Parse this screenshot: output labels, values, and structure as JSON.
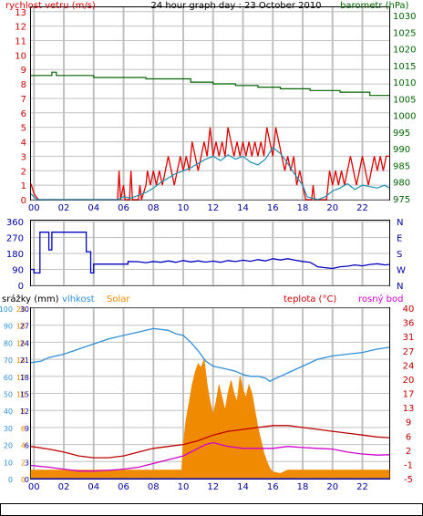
{
  "title": "24 hour graph day : 23 October 2010",
  "colors": {
    "wind": "#e00000",
    "wind_avg": "#1e8fb0",
    "pressure": "#006400",
    "direction": "#0000c0",
    "humidity": "#2f8fd8",
    "temperature": "#c00000",
    "dewpoint": "#d000d0",
    "solar": "#f08a00",
    "rain": "#0000ff",
    "grid": "#c0c0c0",
    "left_axis": "#d00000",
    "right_axis_green": "#006400",
    "axis_blue": "#0000a0",
    "humidity_axis": "#2f8fd8"
  },
  "x_tick_labels": [
    "00",
    "02",
    "04",
    "06",
    "08",
    "10",
    "12",
    "14",
    "16",
    "18",
    "20",
    "22"
  ],
  "chart_data": [
    {
      "type": "line",
      "name": "wind-pressure",
      "title": "24 hour graph day : 23 October 2010",
      "left_axis_label": "rychlost vetru (m/s)",
      "right_axis_label": "barometr (hPa)",
      "left_ticks": [
        "0",
        "1",
        "2",
        "3",
        "4",
        "5",
        "6",
        "7",
        "8",
        "9",
        "10",
        "11",
        "12",
        "13"
      ],
      "right_ticks": [
        "975",
        "980",
        "985",
        "990",
        "995",
        "1000",
        "1005",
        "1010",
        "1015",
        "1020",
        "1025",
        "1030"
      ],
      "ylim_left": [
        0,
        13.3
      ],
      "ylim_right": [
        974.7,
        1032.5
      ],
      "x_range": [
        -0.2,
        23.8
      ],
      "wind_gust": [
        [
          -0.2,
          1.1
        ],
        [
          0,
          0.4
        ],
        [
          0.3,
          0
        ],
        [
          5.6,
          0
        ],
        [
          5.7,
          2
        ],
        [
          5.8,
          0
        ],
        [
          6.0,
          1
        ],
        [
          6.1,
          0
        ],
        [
          6.4,
          0
        ],
        [
          6.5,
          2
        ],
        [
          6.6,
          0
        ],
        [
          7,
          0
        ],
        [
          7.1,
          1
        ],
        [
          7.2,
          0
        ],
        [
          7.5,
          1
        ],
        [
          7.6,
          2
        ],
        [
          7.8,
          1
        ],
        [
          8,
          2
        ],
        [
          8.2,
          1
        ],
        [
          8.4,
          2
        ],
        [
          8.6,
          1
        ],
        [
          8.8,
          2
        ],
        [
          9,
          3
        ],
        [
          9.2,
          2
        ],
        [
          9.4,
          1
        ],
        [
          9.6,
          2
        ],
        [
          9.8,
          3
        ],
        [
          10,
          2
        ],
        [
          10.2,
          3
        ],
        [
          10.4,
          2
        ],
        [
          10.6,
          4
        ],
        [
          10.8,
          3
        ],
        [
          11,
          2
        ],
        [
          11.2,
          3
        ],
        [
          11.4,
          4
        ],
        [
          11.6,
          3
        ],
        [
          11.8,
          5
        ],
        [
          12,
          3
        ],
        [
          12.2,
          4
        ],
        [
          12.4,
          3
        ],
        [
          12.6,
          4
        ],
        [
          12.8,
          3
        ],
        [
          13,
          5
        ],
        [
          13.2,
          4
        ],
        [
          13.4,
          3
        ],
        [
          13.6,
          4
        ],
        [
          13.8,
          3
        ],
        [
          14,
          4
        ],
        [
          14.2,
          3
        ],
        [
          14.4,
          4
        ],
        [
          14.6,
          3
        ],
        [
          14.8,
          4
        ],
        [
          15,
          3
        ],
        [
          15.2,
          4
        ],
        [
          15.4,
          3
        ],
        [
          15.6,
          5
        ],
        [
          15.8,
          4
        ],
        [
          16,
          3
        ],
        [
          16.2,
          5
        ],
        [
          16.4,
          4
        ],
        [
          16.6,
          3
        ],
        [
          16.8,
          2
        ],
        [
          17,
          3
        ],
        [
          17.2,
          2
        ],
        [
          17.4,
          3
        ],
        [
          17.6,
          1
        ],
        [
          17.8,
          2
        ],
        [
          18,
          1
        ],
        [
          18.2,
          0
        ],
        [
          18.6,
          0
        ],
        [
          18.7,
          1
        ],
        [
          18.8,
          0
        ],
        [
          19.6,
          0
        ],
        [
          19.7,
          1
        ],
        [
          19.8,
          2
        ],
        [
          20,
          1
        ],
        [
          20.2,
          2
        ],
        [
          20.4,
          1
        ],
        [
          20.6,
          2
        ],
        [
          20.8,
          1
        ],
        [
          21,
          2
        ],
        [
          21.2,
          3
        ],
        [
          21.4,
          2
        ],
        [
          21.6,
          1
        ],
        [
          21.8,
          2
        ],
        [
          22,
          3
        ],
        [
          22.2,
          2
        ],
        [
          22.4,
          1
        ],
        [
          22.6,
          2
        ],
        [
          22.8,
          3
        ],
        [
          23,
          2
        ],
        [
          23.2,
          3
        ],
        [
          23.4,
          2
        ],
        [
          23.6,
          3
        ],
        [
          23.8,
          3
        ]
      ],
      "wind_avg": [
        [
          -0.2,
          0.4
        ],
        [
          0.2,
          0
        ],
        [
          5.6,
          0
        ],
        [
          6,
          0.2
        ],
        [
          6.5,
          0.1
        ],
        [
          7,
          0.3
        ],
        [
          7.5,
          0.5
        ],
        [
          8,
          0.8
        ],
        [
          8.5,
          1.2
        ],
        [
          9,
          1.5
        ],
        [
          9.5,
          1.8
        ],
        [
          10,
          2.0
        ],
        [
          10.5,
          2.2
        ],
        [
          11,
          2.5
        ],
        [
          11.5,
          2.8
        ],
        [
          12,
          3.0
        ],
        [
          12.5,
          2.7
        ],
        [
          13,
          3.1
        ],
        [
          13.5,
          2.8
        ],
        [
          14,
          3.0
        ],
        [
          14.5,
          2.6
        ],
        [
          15,
          2.4
        ],
        [
          15.5,
          2.8
        ],
        [
          16,
          3.6
        ],
        [
          16.5,
          3.2
        ],
        [
          17,
          2.5
        ],
        [
          17.5,
          1.7
        ],
        [
          18,
          1.0
        ],
        [
          18.3,
          0.2
        ],
        [
          19,
          0
        ],
        [
          19.5,
          0.2
        ],
        [
          20,
          0.6
        ],
        [
          20.5,
          0.8
        ],
        [
          21,
          1.1
        ],
        [
          21.5,
          0.7
        ],
        [
          22,
          1.0
        ],
        [
          22.5,
          0.9
        ],
        [
          23,
          0.8
        ],
        [
          23.5,
          1.0
        ],
        [
          23.8,
          0.8
        ]
      ],
      "pressure": [
        [
          -0.2,
          1012
        ],
        [
          1.2,
          1012
        ],
        [
          1.2,
          1013
        ],
        [
          1.5,
          1013
        ],
        [
          1.5,
          1012
        ],
        [
          4,
          1012
        ],
        [
          4,
          1011.4
        ],
        [
          7.5,
          1011.4
        ],
        [
          7.5,
          1011
        ],
        [
          10.5,
          1011
        ],
        [
          10.5,
          1010
        ],
        [
          12,
          1010
        ],
        [
          12,
          1009.5
        ],
        [
          13.5,
          1009.5
        ],
        [
          13.5,
          1009
        ],
        [
          15,
          1009
        ],
        [
          15,
          1008.5
        ],
        [
          16.5,
          1008.5
        ],
        [
          16.5,
          1008
        ],
        [
          18.5,
          1008
        ],
        [
          18.5,
          1007.5
        ],
        [
          20.5,
          1007.5
        ],
        [
          20.5,
          1007
        ],
        [
          22.5,
          1007
        ],
        [
          22.5,
          1006
        ],
        [
          23.8,
          1006
        ]
      ]
    },
    {
      "type": "line",
      "name": "wind-direction",
      "left_ticks": [
        "0",
        "90",
        "180",
        "270",
        "360"
      ],
      "right_ticks": [
        "N",
        "W",
        "S",
        "E",
        "N"
      ],
      "ylim": [
        0,
        360
      ],
      "x_range": [
        -0.2,
        23.8
      ],
      "direction": [
        [
          -0.2,
          90
        ],
        [
          0,
          90
        ],
        [
          0,
          70
        ],
        [
          0.4,
          70
        ],
        [
          0.4,
          300
        ],
        [
          1,
          300
        ],
        [
          1,
          200
        ],
        [
          1.2,
          200
        ],
        [
          1.2,
          300
        ],
        [
          3.5,
          300
        ],
        [
          3.5,
          190
        ],
        [
          3.8,
          190
        ],
        [
          3.8,
          70
        ],
        [
          4,
          70
        ],
        [
          4,
          120
        ],
        [
          6.3,
          120
        ],
        [
          6.3,
          135
        ],
        [
          7,
          133
        ],
        [
          7.5,
          128
        ],
        [
          8,
          135
        ],
        [
          8.5,
          130
        ],
        [
          9,
          138
        ],
        [
          9.5,
          130
        ],
        [
          10,
          140
        ],
        [
          10.5,
          132
        ],
        [
          11,
          138
        ],
        [
          11.5,
          131
        ],
        [
          12,
          137
        ],
        [
          12.5,
          130
        ],
        [
          13,
          140
        ],
        [
          13.5,
          134
        ],
        [
          14,
          142
        ],
        [
          14.5,
          136
        ],
        [
          15,
          145
        ],
        [
          15.5,
          138
        ],
        [
          16,
          150
        ],
        [
          16.5,
          143
        ],
        [
          17,
          150
        ],
        [
          17.5,
          142
        ],
        [
          18,
          135
        ],
        [
          18.5,
          130
        ],
        [
          19,
          105
        ],
        [
          19.5,
          100
        ],
        [
          20,
          95
        ],
        [
          20.5,
          105
        ],
        [
          21,
          108
        ],
        [
          21.5,
          115
        ],
        [
          22,
          110
        ],
        [
          22.5,
          118
        ],
        [
          23,
          122
        ],
        [
          23.5,
          115
        ],
        [
          23.8,
          118
        ]
      ]
    },
    {
      "type": "line",
      "name": "humidity-temperature-solar-rain",
      "left_axis_labels": [
        "srážky (mm)",
        "vlhkost",
        "Solar"
      ],
      "right_axis_labels": [
        "teplota (°C)",
        "rosný bod"
      ],
      "rain_ticks": [
        "0",
        "3",
        "6",
        "9",
        "12",
        "15",
        "18",
        "21",
        "24",
        "27",
        "30"
      ],
      "humidity_ticks": [
        "0",
        "10",
        "20",
        "30",
        "40",
        "50",
        "60",
        "70",
        "80",
        "90",
        "100"
      ],
      "solar_ticks": [
        "0",
        "2",
        "4",
        "6",
        "8",
        "10",
        "12",
        "14",
        "16",
        "18",
        "20"
      ],
      "temperature_ticks": [
        "-5",
        "-1",
        "2",
        "6",
        "9",
        "13",
        "17",
        "20",
        "24",
        "27",
        "31",
        "36",
        "40"
      ],
      "ylim_humidity": [
        0,
        100
      ],
      "ylim_temperature": [
        -5,
        40
      ],
      "x_range": [
        -0.2,
        23.8
      ],
      "humidity": [
        [
          -0.2,
          68
        ],
        [
          0.5,
          69
        ],
        [
          1,
          71
        ],
        [
          2,
          73
        ],
        [
          3,
          76
        ],
        [
          4,
          79
        ],
        [
          5,
          82
        ],
        [
          6,
          84
        ],
        [
          7,
          86
        ],
        [
          7.5,
          87
        ],
        [
          8,
          88
        ],
        [
          9,
          87
        ],
        [
          9.5,
          85
        ],
        [
          10,
          84
        ],
        [
          10.5,
          80
        ],
        [
          11,
          75
        ],
        [
          11.5,
          69
        ],
        [
          12,
          66
        ],
        [
          12.5,
          65
        ],
        [
          13,
          64
        ],
        [
          13.5,
          63
        ],
        [
          14,
          61
        ],
        [
          14.5,
          60
        ],
        [
          15,
          60
        ],
        [
          15.5,
          59
        ],
        [
          15.8,
          57
        ],
        [
          16,
          58
        ],
        [
          16.5,
          60
        ],
        [
          17,
          62
        ],
        [
          18,
          66
        ],
        [
          19,
          70
        ],
        [
          20,
          72
        ],
        [
          21,
          73
        ],
        [
          22,
          74
        ],
        [
          23,
          76
        ],
        [
          23.8,
          77
        ]
      ],
      "temperature": [
        [
          -0.2,
          3.5
        ],
        [
          1,
          2.8
        ],
        [
          2,
          2
        ],
        [
          3,
          1
        ],
        [
          4,
          0.5
        ],
        [
          5,
          0.5
        ],
        [
          6,
          1
        ],
        [
          7,
          2
        ],
        [
          8,
          3
        ],
        [
          9,
          3.5
        ],
        [
          10,
          4
        ],
        [
          11,
          5
        ],
        [
          12,
          6.5
        ],
        [
          13,
          7.5
        ],
        [
          14,
          8
        ],
        [
          15,
          8.5
        ],
        [
          16,
          9
        ],
        [
          17,
          9
        ],
        [
          18,
          8.5
        ],
        [
          19,
          8
        ],
        [
          20,
          7.5
        ],
        [
          21,
          7
        ],
        [
          22,
          6.5
        ],
        [
          23,
          6
        ],
        [
          23.8,
          5.8
        ]
      ],
      "dewpoint": [
        [
          -0.2,
          -1.5
        ],
        [
          1,
          -2
        ],
        [
          2,
          -2.5
        ],
        [
          3,
          -3
        ],
        [
          4,
          -3
        ],
        [
          5,
          -2.8
        ],
        [
          6,
          -2.5
        ],
        [
          7,
          -2
        ],
        [
          8,
          -1
        ],
        [
          9,
          0
        ],
        [
          10,
          1
        ],
        [
          10.5,
          2
        ],
        [
          11,
          3
        ],
        [
          11.5,
          4
        ],
        [
          12,
          4.5
        ],
        [
          13,
          3.5
        ],
        [
          14,
          3
        ],
        [
          15,
          3
        ],
        [
          16,
          3
        ],
        [
          17,
          3.5
        ],
        [
          18,
          3.2
        ],
        [
          19,
          3
        ],
        [
          20,
          2.8
        ],
        [
          21,
          2
        ],
        [
          22,
          1.5
        ],
        [
          23,
          1.2
        ],
        [
          23.8,
          1.3
        ]
      ],
      "solar": [
        [
          -0.2,
          1
        ],
        [
          9.9,
          1
        ],
        [
          10,
          4
        ],
        [
          10.2,
          7
        ],
        [
          10.4,
          9
        ],
        [
          10.6,
          11
        ],
        [
          10.8,
          12.5
        ],
        [
          11,
          13.5
        ],
        [
          11.2,
          13
        ],
        [
          11.4,
          14
        ],
        [
          11.6,
          11
        ],
        [
          11.8,
          9
        ],
        [
          12,
          7.5
        ],
        [
          12.2,
          9
        ],
        [
          12.4,
          11
        ],
        [
          12.6,
          9.5
        ],
        [
          12.8,
          8
        ],
        [
          13,
          10
        ],
        [
          13.2,
          11.5
        ],
        [
          13.4,
          10
        ],
        [
          13.6,
          9
        ],
        [
          13.8,
          12
        ],
        [
          14,
          10.5
        ],
        [
          14.2,
          9.5
        ],
        [
          14.4,
          11
        ],
        [
          14.6,
          10
        ],
        [
          14.8,
          8
        ],
        [
          15,
          6
        ],
        [
          15.2,
          4.5
        ],
        [
          15.4,
          3
        ],
        [
          15.6,
          2
        ],
        [
          15.8,
          1.2
        ],
        [
          16,
          0.8
        ],
        [
          16.5,
          0.6
        ],
        [
          17,
          1
        ],
        [
          23.8,
          1
        ]
      ],
      "rain": [
        [
          -0.2,
          0
        ],
        [
          23.8,
          0
        ]
      ]
    }
  ]
}
